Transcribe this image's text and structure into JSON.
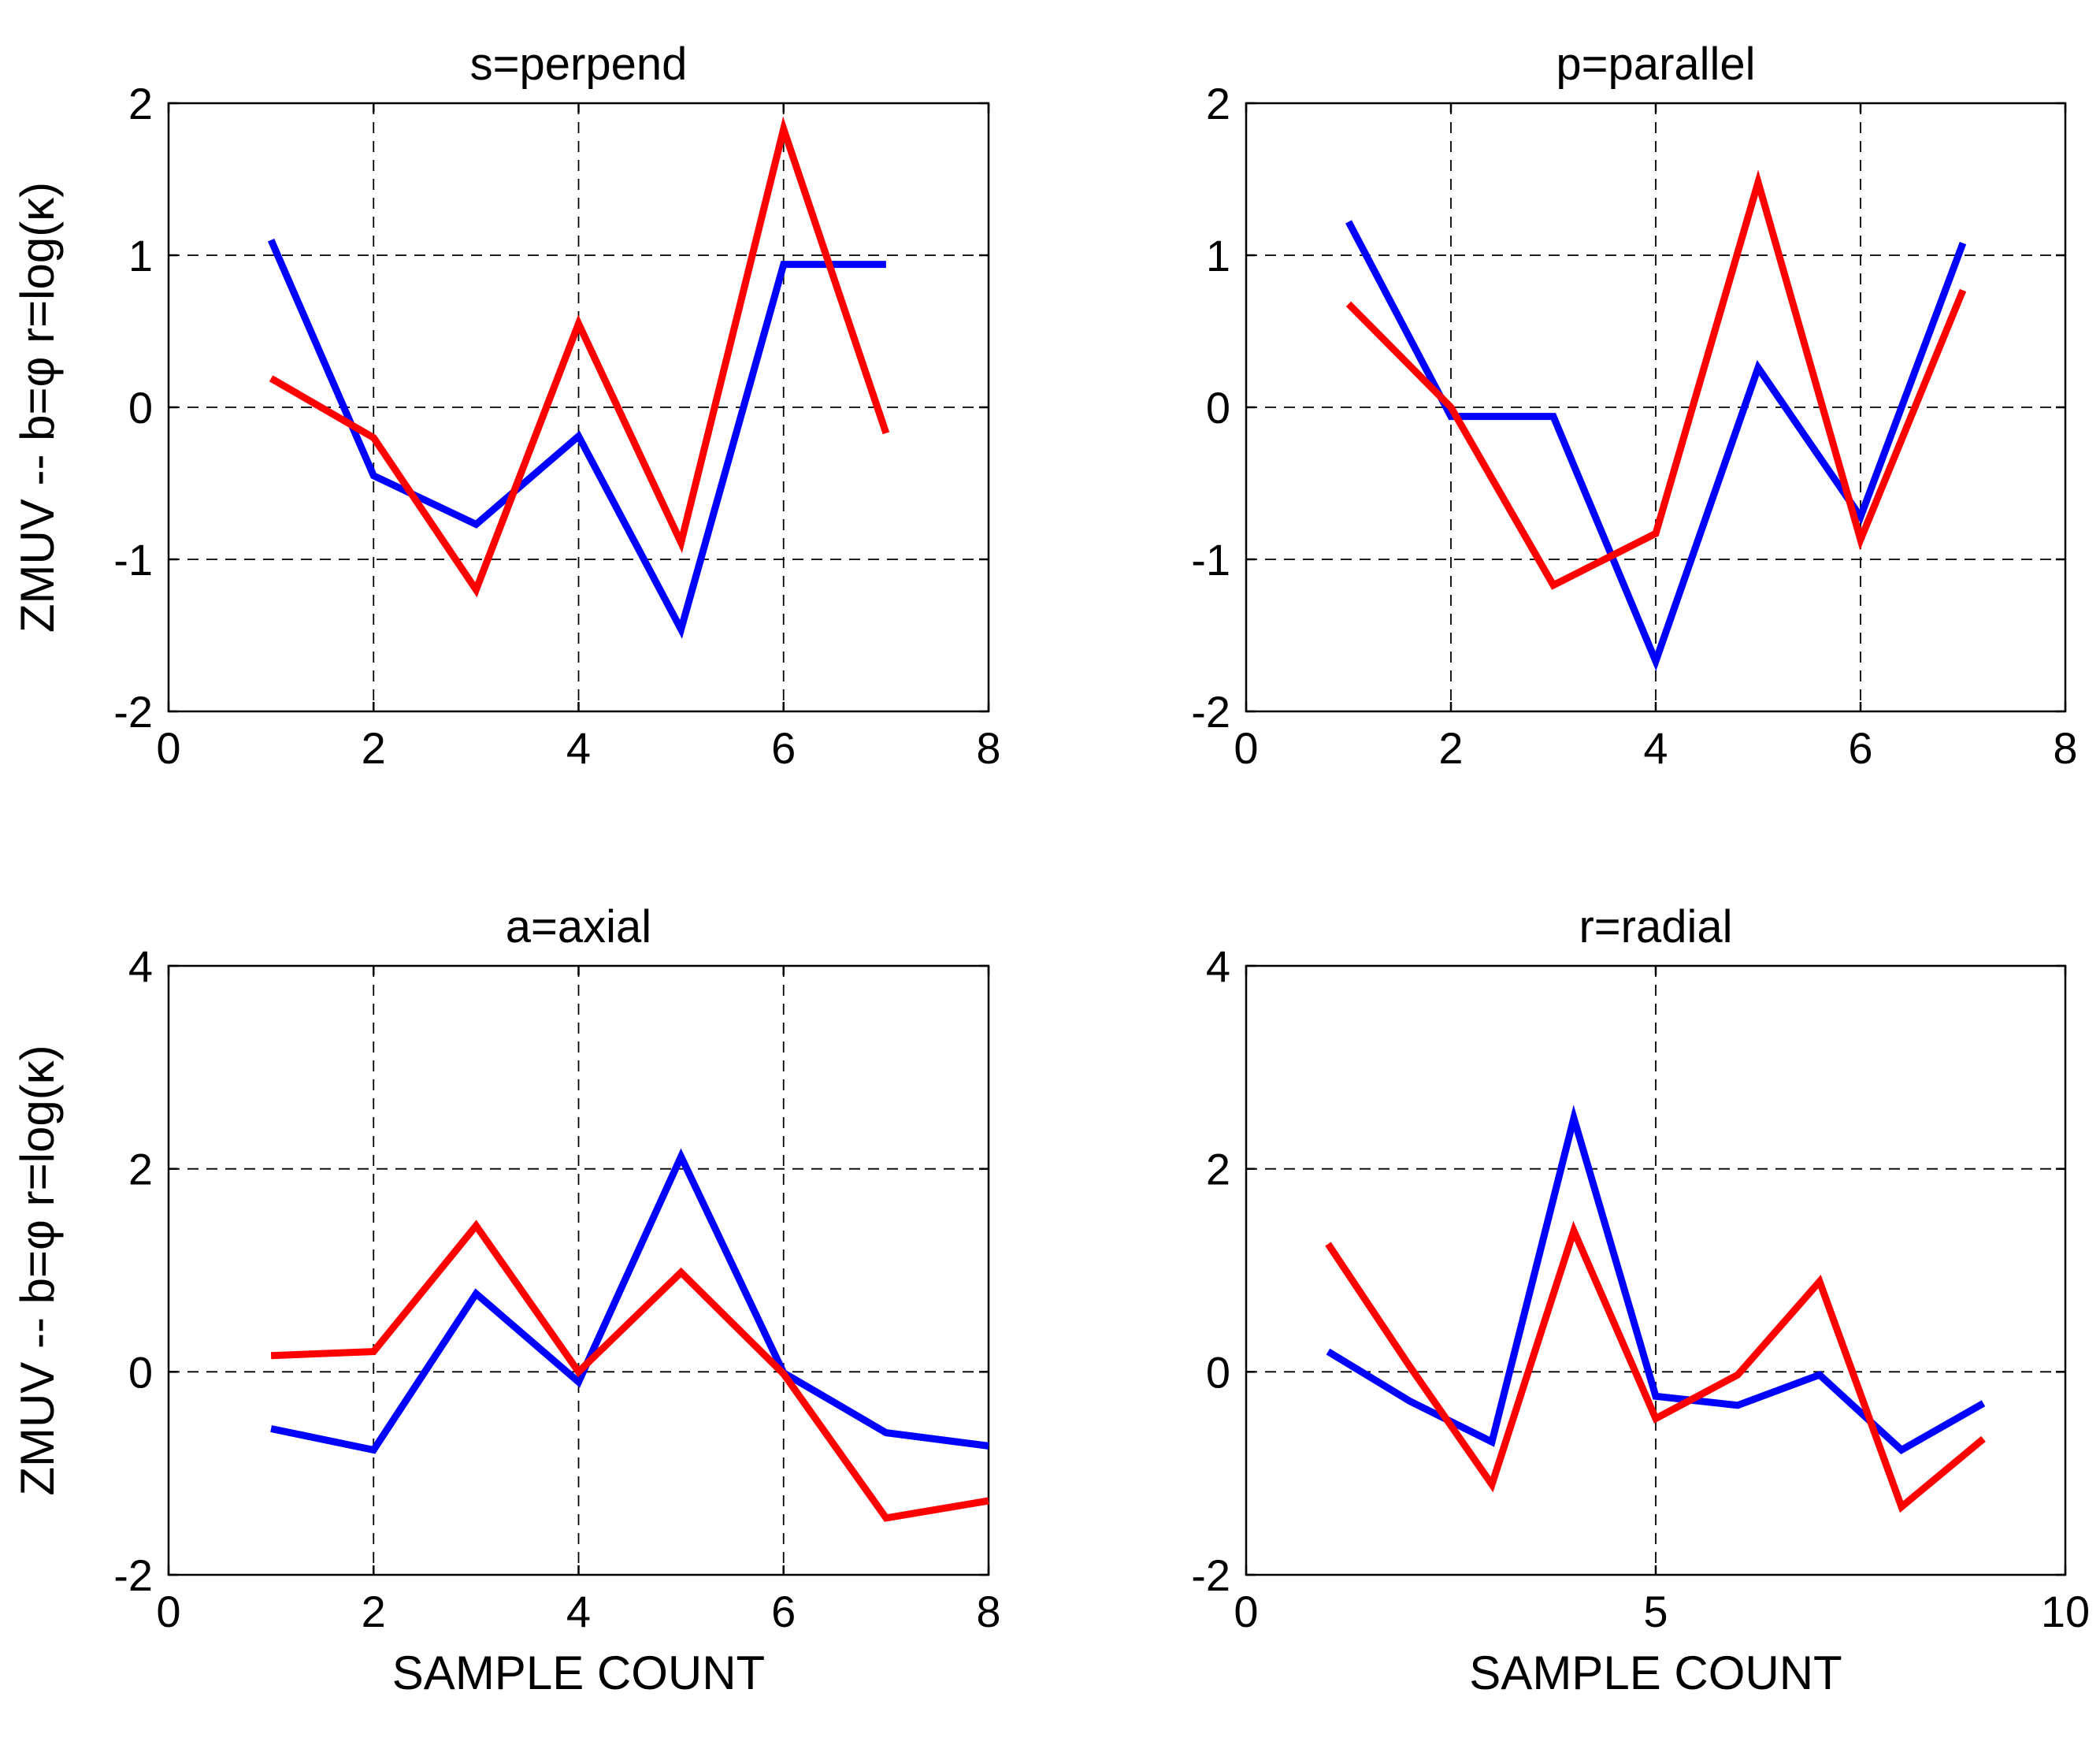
{
  "chart_data": [
    {
      "type": "line",
      "title": "s=perpend",
      "xlabel": "",
      "ylabel": "ZMUV -- b=φ   r=log(κ)",
      "xlim": [
        0,
        8
      ],
      "ylim": [
        -2,
        2
      ],
      "xticks": [
        0,
        2,
        4,
        6,
        8
      ],
      "yticks": [
        -2,
        -1,
        0,
        1,
        2
      ],
      "grid": true,
      "series": [
        {
          "name": "b",
          "color": "#0000ff",
          "x": [
            1,
            2,
            3,
            4,
            5,
            6,
            7
          ],
          "values": [
            1.1,
            -0.45,
            -0.77,
            -0.19,
            -1.46,
            0.94,
            0.94
          ]
        },
        {
          "name": "r",
          "color": "#ff0000",
          "x": [
            1,
            2,
            3,
            4,
            5,
            6,
            7
          ],
          "values": [
            0.19,
            -0.2,
            -1.2,
            0.55,
            -0.89,
            1.83,
            -0.17
          ]
        }
      ]
    },
    {
      "type": "line",
      "title": "p=parallel",
      "xlabel": "",
      "ylabel": "",
      "xlim": [
        0,
        8
      ],
      "ylim": [
        -2,
        2
      ],
      "xticks": [
        0,
        2,
        4,
        6,
        8
      ],
      "yticks": [
        -2,
        -1,
        0,
        1,
        2
      ],
      "grid": true,
      "series": [
        {
          "name": "b",
          "color": "#0000ff",
          "x": [
            1,
            2,
            3,
            4,
            5,
            6,
            7
          ],
          "values": [
            1.22,
            -0.06,
            -0.06,
            -1.67,
            0.26,
            -0.72,
            1.08
          ]
        },
        {
          "name": "r",
          "color": "#ff0000",
          "x": [
            1,
            2,
            3,
            4,
            5,
            6,
            7
          ],
          "values": [
            0.68,
            0.0,
            -1.17,
            -0.83,
            1.48,
            -0.87,
            0.77
          ]
        }
      ]
    },
    {
      "type": "line",
      "title": "a=axial",
      "xlabel": "SAMPLE COUNT",
      "ylabel": "ZMUV -- b=φ   r=log(κ)",
      "xlim": [
        0,
        8
      ],
      "ylim": [
        -2,
        4
      ],
      "xticks": [
        0,
        2,
        4,
        6,
        8
      ],
      "yticks": [
        -2,
        0,
        2,
        4
      ],
      "grid": true,
      "series": [
        {
          "name": "b",
          "color": "#0000ff",
          "x": [
            1,
            2,
            3,
            4,
            5,
            6,
            7,
            8
          ],
          "values": [
            -0.56,
            -0.77,
            0.77,
            -0.1,
            2.12,
            -0.01,
            -0.6,
            -0.73
          ]
        },
        {
          "name": "r",
          "color": "#ff0000",
          "x": [
            1,
            2,
            3,
            4,
            5,
            6,
            7,
            8
          ],
          "values": [
            0.16,
            0.2,
            1.44,
            0.0,
            0.98,
            -0.02,
            -1.44,
            -1.27
          ]
        }
      ]
    },
    {
      "type": "line",
      "title": "r=radial",
      "xlabel": "SAMPLE COUNT",
      "ylabel": "",
      "xlim": [
        0,
        10
      ],
      "ylim": [
        -2,
        4
      ],
      "xticks": [
        0,
        5,
        10
      ],
      "yticks": [
        -2,
        0,
        2,
        4
      ],
      "grid": true,
      "series": [
        {
          "name": "b",
          "color": "#0000ff",
          "x": [
            1,
            2,
            3,
            4,
            5,
            6,
            7,
            8,
            9
          ],
          "values": [
            0.2,
            -0.29,
            -0.69,
            2.5,
            -0.24,
            -0.33,
            -0.03,
            -0.77,
            -0.31
          ]
        },
        {
          "name": "r",
          "color": "#ff0000",
          "x": [
            1,
            2,
            3,
            4,
            5,
            6,
            7,
            8,
            9
          ],
          "values": [
            1.26,
            0.05,
            -1.11,
            1.39,
            -0.46,
            -0.03,
            0.89,
            -1.33,
            -0.66
          ]
        }
      ]
    }
  ]
}
